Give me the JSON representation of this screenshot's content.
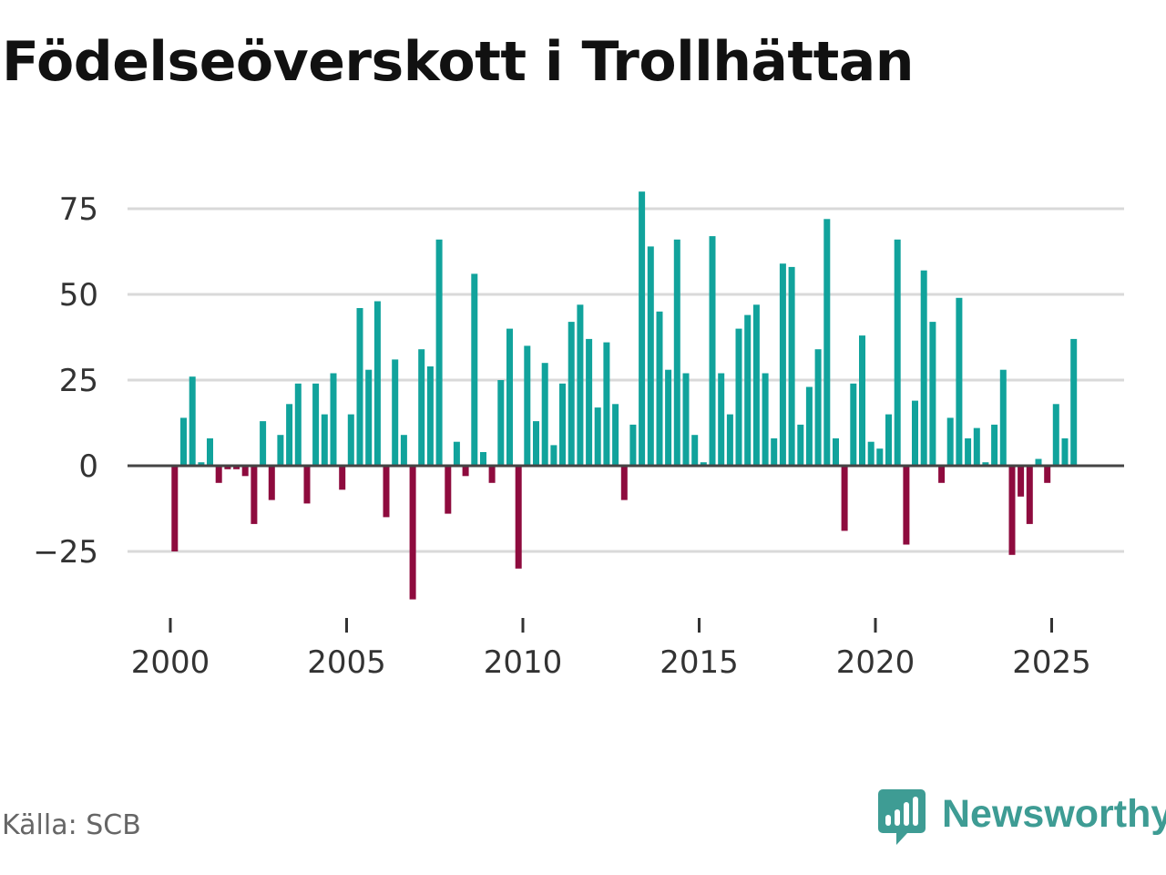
{
  "title": "Födelseöverskott i Trollhättan",
  "source": "Källa: SCB",
  "brand": {
    "name": "Newsworthy",
    "icon": "newsworthy-logo-icon",
    "color": "#3e9c94"
  },
  "colors": {
    "positive": "#11a39c",
    "negative": "#8e0b3e",
    "grid": "#d9d9d9",
    "zero_line": "#444444"
  },
  "chart_data": {
    "type": "bar",
    "title": "Födelseöverskott i Trollhättan",
    "xlabel": "",
    "ylabel": "",
    "ylim": [
      -40,
      80
    ],
    "xlim": [
      1999.2,
      2026.9
    ],
    "y_ticks": [
      75,
      50,
      25,
      0,
      -25
    ],
    "y_tick_labels": [
      "75",
      "50",
      "25",
      "0",
      "−25"
    ],
    "x_ticks": [
      2000,
      2005,
      2010,
      2015,
      2020,
      2025
    ],
    "x_tick_labels": [
      "2000",
      "2005",
      "2010",
      "2015",
      "2020",
      "2025"
    ],
    "start_year": 2000,
    "start_month": 1,
    "period_months": 3,
    "values": [
      -25,
      14,
      26,
      1,
      8,
      -5,
      -1,
      -1,
      -3,
      -17,
      13,
      -10,
      9,
      18,
      24,
      -11,
      24,
      15,
      27,
      -7,
      15,
      46,
      28,
      48,
      -15,
      31,
      9,
      -39,
      34,
      29,
      66,
      -14,
      7,
      -3,
      56,
      4,
      -5,
      25,
      40,
      -30,
      35,
      13,
      30,
      6,
      24,
      42,
      47,
      37,
      17,
      36,
      18,
      -10,
      12,
      80,
      64,
      45,
      28,
      66,
      27,
      9,
      1,
      67,
      27,
      15,
      40,
      44,
      47,
      27,
      8,
      59,
      58,
      12,
      23,
      34,
      72,
      8,
      -19,
      24,
      38,
      7,
      5,
      15,
      66,
      -23,
      19,
      57,
      42,
      -5,
      14,
      49,
      8,
      11,
      1,
      12,
      28,
      -26,
      -9,
      -17,
      2,
      -5,
      18,
      8,
      37
    ]
  }
}
